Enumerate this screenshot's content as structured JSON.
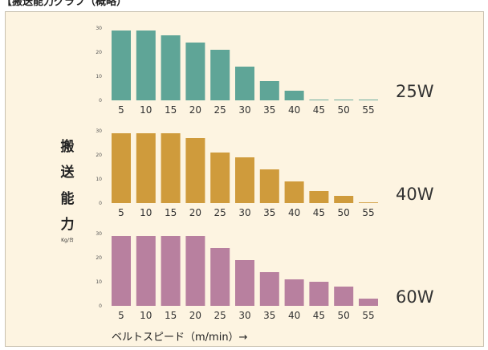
{
  "page": {
    "header_text": "【搬送能力グラフ（概略）"
  },
  "chart_data": {
    "type": "bar",
    "ylabel_chars": [
      "搬",
      "送",
      "能",
      "力"
    ],
    "yunit": "Kg/台",
    "xlabel": "ベルトスピード（m/min）→",
    "categories": [
      "5",
      "10",
      "15",
      "20",
      "25",
      "30",
      "35",
      "40",
      "45",
      "50",
      "55"
    ],
    "ylim": [
      0,
      30
    ],
    "yticks": [
      "0",
      "10",
      "20",
      "30"
    ],
    "grid": false,
    "panels": [
      {
        "name": "25W",
        "color": "#5fa597",
        "values": [
          29,
          29,
          27,
          24,
          21,
          14,
          8,
          4,
          0.3,
          0.3,
          0.3
        ]
      },
      {
        "name": "40W",
        "color": "#cf9b3c",
        "values": [
          29,
          29,
          29,
          27,
          21,
          19,
          14,
          9,
          5,
          3,
          0.3
        ]
      },
      {
        "name": "60W",
        "color": "#b8809f",
        "values": [
          29,
          29,
          29,
          29,
          24,
          19,
          14,
          11,
          10,
          8,
          3
        ]
      }
    ]
  }
}
